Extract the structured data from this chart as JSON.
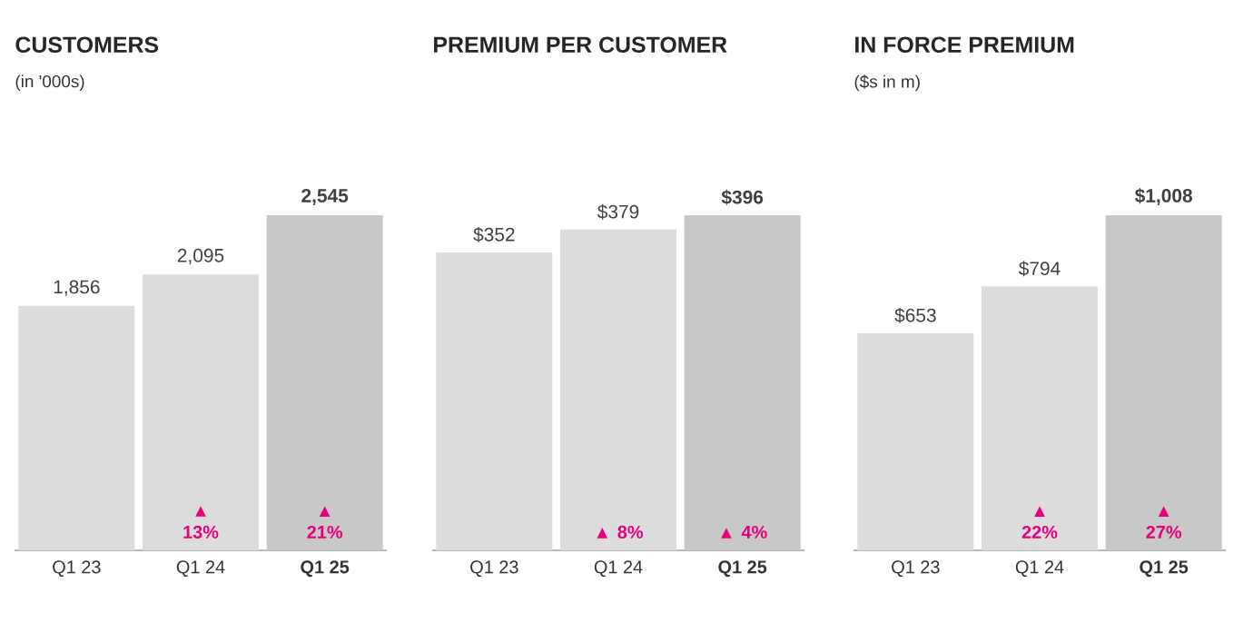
{
  "chart_data": [
    {
      "type": "bar",
      "title": "CUSTOMERS",
      "subtitle": "(in '000s)",
      "categories": [
        "Q1 23",
        "Q1 24",
        "Q1 25"
      ],
      "values": [
        1856,
        2095,
        2545
      ],
      "value_labels": [
        "1,856",
        "2,095",
        "2,545"
      ],
      "colors": [
        "#dcdcdc",
        "#dcdcdc",
        "#c8c8c8"
      ],
      "annotations": [
        "▲ 13%",
        "▲ 21%"
      ]
    },
    {
      "type": "bar",
      "title": "PREMIUM PER CUSTOMER",
      "categories": [
        "Q1 23",
        "Q1 24",
        "Q1 25"
      ],
      "values": [
        352,
        379,
        396
      ],
      "value_labels": [
        "$352",
        "$379",
        "$396"
      ],
      "colors": [
        "#dcdcdc",
        "#dcdcdc",
        "#c8c8c8"
      ],
      "annotations": [
        "▲ 8%",
        "▲ 4%"
      ]
    },
    {
      "type": "bar",
      "title": "IN FORCE PREMIUM",
      "subtitle": "($s in m)",
      "categories": [
        "Q1 23",
        "Q1 24",
        "Q1 25"
      ],
      "values": [
        653,
        794,
        1008
      ],
      "value_labels": [
        "$653",
        "$794",
        "$1,008"
      ],
      "colors": [
        "#dcdcdc",
        "#dcdcdc",
        "#c8c8c8"
      ],
      "annotations": [
        "▲ 22%",
        "▲ 27%"
      ]
    }
  ]
}
